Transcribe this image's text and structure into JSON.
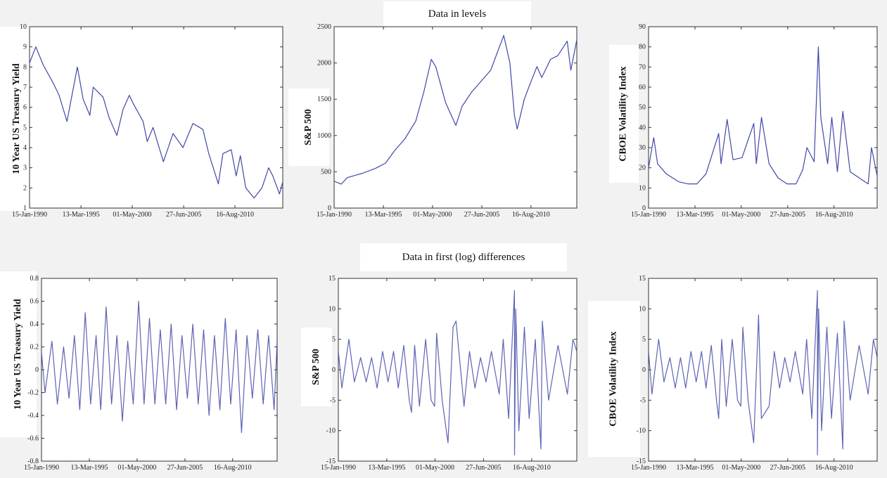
{
  "sections": {
    "levels_title": "Data in levels",
    "diffs_title": "Data in first (log) differences"
  },
  "chart_data": [
    {
      "type": "line",
      "group": "levels",
      "ylabel": "10 Year US Treasury Yield",
      "ylim": [
        1,
        10
      ],
      "yticks": [
        1,
        2,
        3,
        4,
        5,
        6,
        7,
        8,
        9,
        10
      ],
      "xlim": [
        "1990-01-15",
        "2015-06-01"
      ],
      "xticks": [
        "15-Jan-1990",
        "13-Mar-1995",
        "01-May-2000",
        "27-Jun-2005",
        "16-Aug-2010"
      ],
      "series": [
        {
          "x": [
            "1990-01-15",
            "1990-09-01",
            "1991-06-01",
            "1992-06-01",
            "1993-01-01",
            "1993-10-15",
            "1994-11-01",
            "1995-06-01",
            "1996-02-01",
            "1996-06-01",
            "1997-06-01",
            "1998-01-01",
            "1998-10-15",
            "1999-06-01",
            "2000-01-15",
            "2000-06-01",
            "2001-06-01",
            "2001-11-01",
            "2002-06-01",
            "2003-06-15",
            "2004-06-01",
            "2005-06-01",
            "2006-06-01",
            "2007-06-01",
            "2008-01-01",
            "2008-12-15",
            "2009-06-01",
            "2010-04-01",
            "2010-10-01",
            "2011-03-01",
            "2011-09-15",
            "2012-07-15",
            "2013-05-01",
            "2013-12-31",
            "2014-06-01",
            "2015-01-30",
            "2015-06-01"
          ],
          "y": [
            8.2,
            9.0,
            8.1,
            7.2,
            6.6,
            5.3,
            8.0,
            6.4,
            5.6,
            7.0,
            6.5,
            5.5,
            4.6,
            5.9,
            6.6,
            6.2,
            5.3,
            4.3,
            5.0,
            3.3,
            4.7,
            4.0,
            5.2,
            4.9,
            3.7,
            2.2,
            3.7,
            3.9,
            2.6,
            3.6,
            2.0,
            1.5,
            2.0,
            3.0,
            2.6,
            1.7,
            2.3
          ]
        }
      ]
    },
    {
      "type": "line",
      "group": "levels",
      "ylabel": "S&P 500",
      "ylim": [
        0,
        2500
      ],
      "yticks": [
        0,
        500,
        1000,
        1500,
        2000,
        2500
      ],
      "xlim": [
        "1990-01-15",
        "2015-06-01"
      ],
      "xticks": [
        "15-Jan-1990",
        "13-Mar-1995",
        "01-May-2000",
        "27-Jun-2005",
        "16-Aug-2010"
      ],
      "series": [
        {
          "x": [
            "1990-01-15",
            "1990-10-15",
            "1991-06-01",
            "1993-01-01",
            "1994-06-01",
            "1995-06-01",
            "1996-06-01",
            "1997-06-01",
            "1998-08-01",
            "1999-06-01",
            "2000-03-15",
            "2000-09-01",
            "2001-09-15",
            "2002-10-09",
            "2003-06-01",
            "2004-06-01",
            "2005-06-01",
            "2006-06-01",
            "2007-10-09",
            "2008-06-01",
            "2008-11-20",
            "2009-03-09",
            "2009-12-01",
            "2010-07-01",
            "2011-04-01",
            "2011-10-01",
            "2012-09-01",
            "2013-06-01",
            "2014-06-01",
            "2014-10-15",
            "2015-06-01"
          ],
          "y": [
            370,
            330,
            420,
            480,
            550,
            620,
            800,
            950,
            1200,
            1600,
            2050,
            1950,
            1450,
            1140,
            1400,
            1600,
            1750,
            1900,
            2380,
            2000,
            1280,
            1090,
            1500,
            1700,
            1950,
            1800,
            2050,
            2100,
            2300,
            1900,
            2320
          ]
        }
      ]
    },
    {
      "type": "line",
      "group": "levels",
      "ylabel": "CBOE Volatility Index",
      "ylim": [
        0,
        90
      ],
      "yticks": [
        0,
        10,
        20,
        30,
        40,
        50,
        60,
        70,
        80,
        90
      ],
      "xlim": [
        "1990-01-15",
        "2015-06-01"
      ],
      "xticks": [
        "15-Jan-1990",
        "13-Mar-1995",
        "01-May-2000",
        "27-Jun-2005",
        "16-Aug-2010"
      ],
      "series": [
        {
          "x": [
            "1990-01-15",
            "1990-08-15",
            "1991-01-15",
            "1992-01-01",
            "1993-06-01",
            "1994-06-01",
            "1995-06-01",
            "1996-06-01",
            "1997-10-27",
            "1998-02-01",
            "1998-10-05",
            "1999-06-01",
            "2000-06-01",
            "2001-09-20",
            "2002-01-01",
            "2002-08-01",
            "2003-06-01",
            "2004-06-01",
            "2005-06-01",
            "2006-06-01",
            "2007-02-27",
            "2007-08-15",
            "2008-06-01",
            "2008-11-20",
            "2009-03-01",
            "2009-12-01",
            "2010-05-20",
            "2011-01-01",
            "2011-08-08",
            "2012-06-01",
            "2013-06-01",
            "2014-06-01",
            "2014-10-15",
            "2015-06-01"
          ],
          "y": [
            20,
            35,
            22,
            17,
            13,
            12,
            12,
            17,
            37,
            22,
            44,
            24,
            25,
            42,
            22,
            45,
            22,
            15,
            12,
            12,
            19,
            30,
            23,
            80,
            45,
            22,
            45,
            18,
            48,
            18,
            15,
            12,
            30,
            16
          ]
        }
      ]
    },
    {
      "type": "line",
      "group": "differences",
      "ylabel": "10 Year US Treasury Yield",
      "ylim": [
        -0.8,
        0.8
      ],
      "yticks": [
        -0.8,
        -0.6,
        -0.4,
        -0.2,
        0,
        0.2,
        0.4,
        0.6,
        0.8
      ],
      "xlim": [
        "1990-01-15",
        "2015-06-01"
      ],
      "xticks": [
        "15-Jan-1990",
        "13-Mar-1995",
        "01-May-2000",
        "27-Jun-2005",
        "16-Aug-2010"
      ],
      "series": [
        {
          "x": [
            "1990-01-15",
            "1990-06-01",
            "1991-03-01",
            "1991-10-01",
            "1992-06-01",
            "1993-01-01",
            "1993-08-01",
            "1994-03-01",
            "1994-10-01",
            "1995-05-01",
            "1995-12-01",
            "1996-06-01",
            "1997-01-01",
            "1997-08-01",
            "1998-03-01",
            "1998-10-01",
            "1999-05-01",
            "1999-12-01",
            "2000-07-01",
            "2001-02-01",
            "2001-09-01",
            "2002-04-01",
            "2002-11-01",
            "2003-06-01",
            "2004-01-01",
            "2004-08-01",
            "2005-03-01",
            "2005-10-01",
            "2006-05-01",
            "2006-12-01",
            "2007-07-01",
            "2008-02-01",
            "2008-09-01",
            "2009-04-01",
            "2009-11-01",
            "2010-06-01",
            "2011-01-01",
            "2011-08-01",
            "2012-03-01",
            "2012-10-01",
            "2013-05-01",
            "2013-12-01",
            "2014-07-01",
            "2015-02-01",
            "2015-06-01"
          ],
          "y": [
            0.15,
            -0.2,
            0.25,
            -0.3,
            0.2,
            -0.25,
            0.3,
            -0.35,
            0.5,
            -0.3,
            0.3,
            -0.35,
            0.55,
            -0.3,
            0.3,
            -0.45,
            0.25,
            -0.3,
            0.6,
            -0.3,
            0.45,
            -0.3,
            0.35,
            -0.3,
            0.4,
            -0.35,
            0.3,
            -0.25,
            0.4,
            -0.3,
            0.35,
            -0.4,
            0.3,
            -0.35,
            0.45,
            -0.3,
            0.35,
            -0.55,
            0.3,
            -0.25,
            0.35,
            -0.3,
            0.3,
            -0.35,
            0.25
          ]
        }
      ]
    },
    {
      "type": "line",
      "group": "differences",
      "ylabel": "S&P 500",
      "ylim": [
        -15,
        15
      ],
      "yticks": [
        -15,
        -10,
        -5,
        0,
        5,
        10,
        15
      ],
      "xlim": [
        "1990-01-15",
        "2015-06-01"
      ],
      "xticks": [
        "15-Jan-1990",
        "13-Mar-1995",
        "01-May-2000",
        "27-Jun-2005",
        "16-Aug-2010"
      ],
      "series": [
        {
          "x": [
            "1990-01-15",
            "1990-06-01",
            "1991-03-01",
            "1991-10-01",
            "1992-06-01",
            "1993-01-01",
            "1993-08-01",
            "1994-03-01",
            "1994-10-01",
            "1995-05-01",
            "1995-12-01",
            "1996-06-01",
            "1997-01-01",
            "1997-08-01",
            "1997-10-27",
            "1998-03-01",
            "1998-09-01",
            "1999-05-01",
            "1999-12-01",
            "2000-04-14",
            "2000-07-01",
            "2001-02-01",
            "2001-09-17",
            "2002-04-01",
            "2002-07-24",
            "2003-06-01",
            "2004-01-01",
            "2004-08-01",
            "2005-03-01",
            "2005-10-01",
            "2006-05-01",
            "2007-02-27",
            "2007-08-01",
            "2008-03-01",
            "2008-10-13",
            "2008-10-15",
            "2008-12-01",
            "2009-04-01",
            "2009-11-01",
            "2010-05-06",
            "2011-01-01",
            "2011-08-08",
            "2011-10-01",
            "2012-06-01",
            "2013-06-01",
            "2014-06-01",
            "2015-01-01",
            "2015-06-01"
          ],
          "y": [
            3,
            -3,
            5,
            -2,
            2,
            -2,
            2,
            -3,
            3,
            -2,
            3,
            -3,
            4,
            -5,
            -7,
            4,
            -6,
            5,
            -5,
            -6,
            6,
            -5,
            -12,
            7,
            8,
            -6,
            3,
            -3,
            2,
            -2,
            3,
            -4,
            5,
            -8,
            13,
            -14,
            10,
            -10,
            7,
            -8,
            5,
            -13,
            8,
            -5,
            4,
            -4,
            5,
            3
          ]
        }
      ]
    },
    {
      "type": "line",
      "group": "differences",
      "ylabel": "CBOE Volatility Index",
      "ylim": [
        -15,
        15
      ],
      "yticks": [
        -15,
        -10,
        -5,
        0,
        5,
        10,
        15
      ],
      "xlim": [
        "1990-01-15",
        "2015-06-01"
      ],
      "xticks": [
        "15-Jan-1990",
        "13-Mar-1995",
        "01-May-2000",
        "27-Jun-2005",
        "16-Aug-2010"
      ],
      "series": [
        {
          "x": [
            "1990-01-15",
            "1990-06-01",
            "1991-03-01",
            "1991-10-01",
            "1992-06-01",
            "1993-01-01",
            "1993-08-01",
            "1994-03-01",
            "1994-10-01",
            "1995-05-01",
            "1995-12-01",
            "1996-06-01",
            "1997-01-01",
            "1997-08-01",
            "1997-10-27",
            "1998-03-01",
            "1998-09-01",
            "1999-05-01",
            "1999-12-01",
            "2000-04-14",
            "2000-07-01",
            "2001-02-01",
            "2001-09-17",
            "2002-04-01",
            "2002-07-24",
            "2003-06-01",
            "2004-01-01",
            "2004-08-01",
            "2005-03-01",
            "2005-10-01",
            "2006-05-01",
            "2007-02-27",
            "2007-08-01",
            "2008-03-01",
            "2008-10-13",
            "2008-10-15",
            "2008-12-01",
            "2009-04-01",
            "2009-11-01",
            "2010-05-06",
            "2011-01-01",
            "2011-08-08",
            "2011-10-01",
            "2012-06-01",
            "2013-06-01",
            "2014-06-01",
            "2015-01-01",
            "2015-06-01"
          ],
          "y": [
            3,
            -4,
            5,
            -2,
            2,
            -3,
            2,
            -3,
            3,
            -2,
            3,
            -3,
            4,
            -5,
            -8,
            5,
            -6,
            5,
            -5,
            -6,
            7,
            -5,
            -12,
            9,
            -8,
            -6,
            3,
            -3,
            2,
            -2,
            3,
            -4,
            5,
            -8,
            13,
            -14,
            10,
            -10,
            7,
            -8,
            6,
            -13,
            8,
            -5,
            4,
            -4,
            5,
            2
          ]
        }
      ]
    }
  ]
}
